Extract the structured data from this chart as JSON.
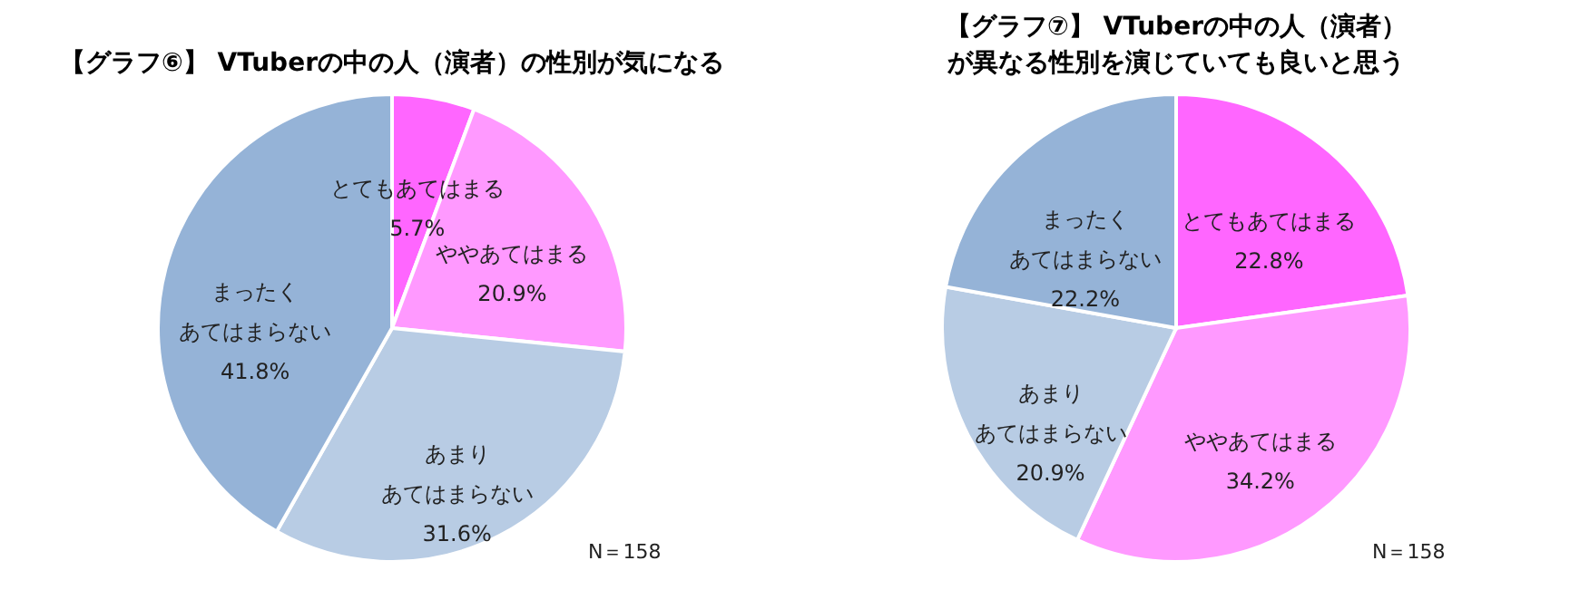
{
  "chart_data": [
    {
      "type": "pie",
      "title": "【グラフ⑥】 VTuberの中の人（演者）の性別が気になる",
      "categories": [
        "とてもあてはまる",
        "ややあてはまる",
        "あまりあてはまらない",
        "まったくあてはまらない"
      ],
      "values": [
        5.7,
        20.9,
        31.6,
        41.8
      ],
      "value_labels": [
        "5.7%",
        "20.9%",
        "31.6%",
        "41.8%"
      ],
      "colors": [
        "#ff66ff",
        "#ff99ff",
        "#b8cce4",
        "#95b3d7"
      ],
      "annotations": [
        "N＝158"
      ],
      "legend": false
    },
    {
      "type": "pie",
      "title": "【グラフ⑦】 VTuberの中の人（演者）が異なる性別を演じていても良いと思う",
      "categories": [
        "とてもあてはまる",
        "ややあてはまる",
        "あまりあてはまらない",
        "まったくあてはまらない"
      ],
      "values": [
        22.8,
        34.2,
        20.9,
        22.2
      ],
      "value_labels": [
        "22.8%",
        "34.2%",
        "20.9%",
        "22.2%"
      ],
      "colors": [
        "#ff66ff",
        "#ff99ff",
        "#b8cce4",
        "#95b3d7"
      ],
      "annotations": [
        "N＝158"
      ],
      "legend": false
    }
  ]
}
